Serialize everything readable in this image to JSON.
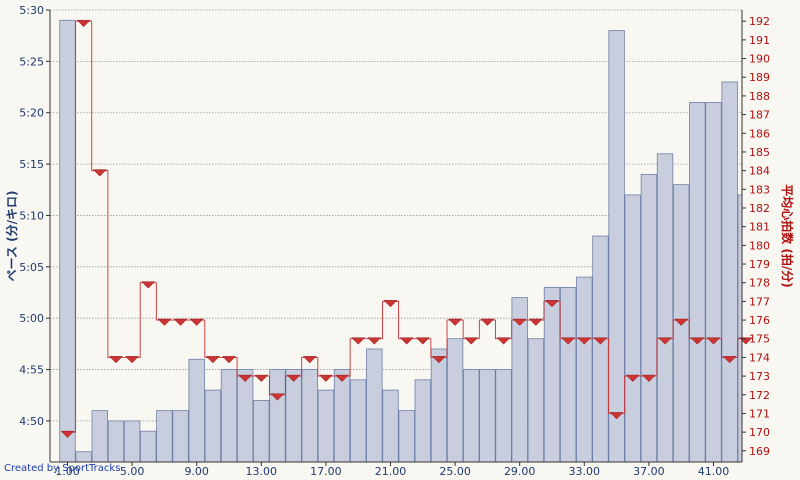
{
  "credit": "Created by SportTracks",
  "chart_data": {
    "type": "bar",
    "bar_series": {
      "name": "ペース (分/キロ)",
      "x": [
        1,
        2,
        3,
        4,
        5,
        6,
        7,
        8,
        9,
        10,
        11,
        12,
        13,
        14,
        15,
        16,
        17,
        18,
        19,
        20,
        21,
        22,
        23,
        24,
        25,
        26,
        27,
        28,
        29,
        30,
        31,
        32,
        33,
        34,
        35,
        36,
        37,
        38,
        39,
        40,
        41,
        42,
        43
      ],
      "values": [
        "5:29",
        "4:47",
        "4:51",
        "4:50",
        "4:50",
        "4:49",
        "4:51",
        "4:51",
        "4:56",
        "4:53",
        "4:55",
        "4:55",
        "4:52",
        "4:55",
        "4:55",
        "4:55",
        "4:53",
        "4:55",
        "4:54",
        "4:57",
        "4:53",
        "4:51",
        "4:54",
        "4:57",
        "4:58",
        "4:55",
        "4:55",
        "4:55",
        "5:02",
        "4:58",
        "5:03",
        "5:03",
        "5:04",
        "5:08",
        "5:28",
        "5:12",
        "5:14",
        "5:16",
        "5:13",
        "5:21",
        "5:21",
        "5:23",
        "5:12"
      ],
      "color": "#c8cedd",
      "edge": "#6e7fa8"
    },
    "line_series": {
      "name": "平均心拍数 (拍/分)",
      "values": [
        170,
        192,
        184,
        174,
        174,
        178,
        176,
        176,
        176,
        174,
        174,
        173,
        173,
        172,
        173,
        174,
        173,
        173,
        175,
        175,
        177,
        175,
        175,
        174,
        176,
        175,
        176,
        175,
        176,
        176,
        177,
        175,
        175,
        175,
        171,
        173,
        173,
        175,
        176,
        175,
        175,
        174,
        175
      ],
      "color": "#cc3333"
    },
    "xlabel": "",
    "y_left": {
      "label": "ペース (分/キロ)",
      "ticks": [
        "4:50",
        "4:55",
        "5:00",
        "5:05",
        "5:10",
        "5:15",
        "5:20",
        "5:25",
        "5:30"
      ],
      "min": "4:46",
      "max": "5:30"
    },
    "y_right": {
      "label": "平均心拍数 (拍/分)",
      "ticks": [
        169,
        170,
        171,
        172,
        173,
        174,
        175,
        176,
        177,
        178,
        179,
        180,
        181,
        182,
        183,
        184,
        185,
        186,
        187,
        188,
        189,
        190,
        191,
        192
      ],
      "min": 168.4,
      "max": 192.6
    },
    "x_ticks": [
      "1.00",
      "5.00",
      "9.00",
      "13.00",
      "17.00",
      "21.00",
      "25.00",
      "29.00",
      "33.00",
      "37.00",
      "41.00"
    ],
    "grid": true
  }
}
